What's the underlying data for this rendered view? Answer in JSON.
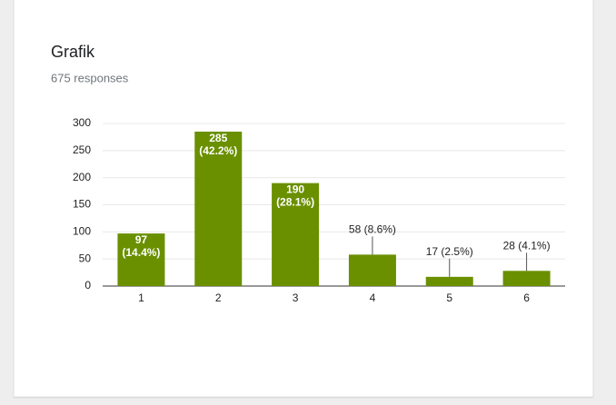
{
  "chart_data": {
    "type": "bar",
    "title": "Grafik",
    "subtitle": "675 responses",
    "categories": [
      "1",
      "2",
      "3",
      "4",
      "5",
      "6"
    ],
    "values": [
      97,
      285,
      190,
      58,
      17,
      28
    ],
    "value_labels": [
      "97 (14.4%)",
      "285 (42.2%)",
      "190 (28.1%)",
      "58 (8.6%)",
      "17 (2.5%)",
      "28 (4.1%)"
    ],
    "color": "#6a9000",
    "ylim": [
      0,
      300
    ],
    "yticks": [
      0,
      50,
      100,
      150,
      200,
      250,
      300
    ],
    "grid": true
  }
}
